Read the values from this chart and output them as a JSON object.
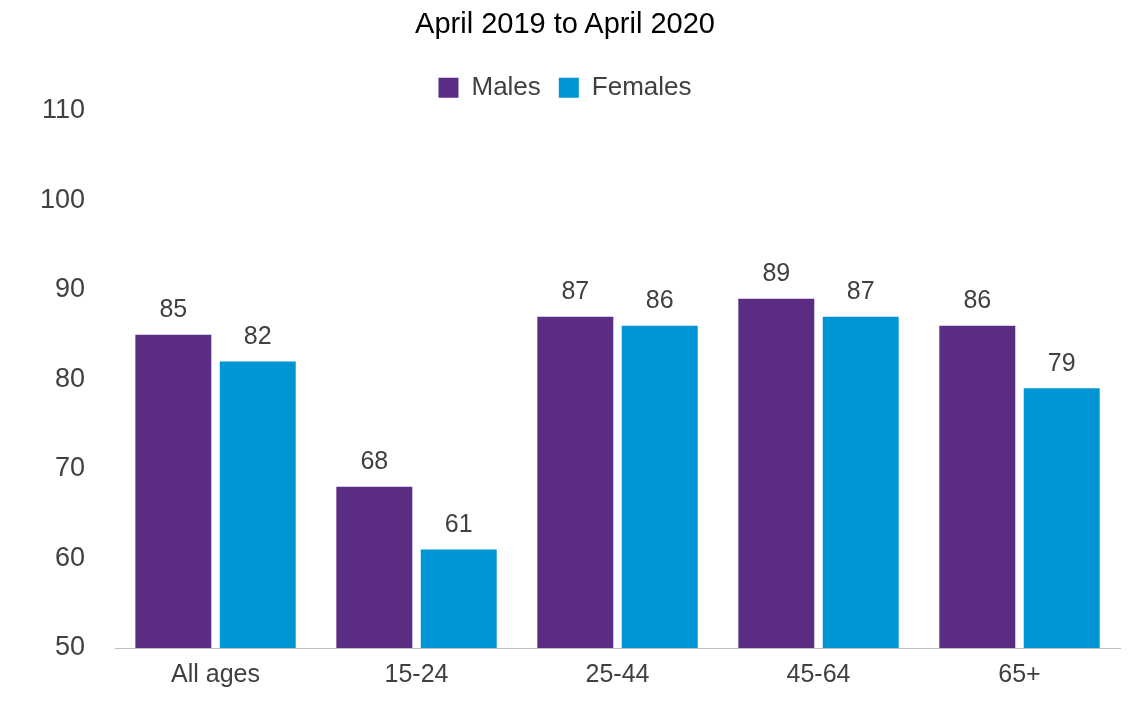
{
  "chart_data": {
    "type": "bar",
    "title": "April 2019 to April 2020",
    "categories": [
      "All ages",
      "15-24",
      "25-44",
      "45-64",
      "65+"
    ],
    "series": [
      {
        "name": "Males",
        "color": "#5b2c83",
        "values": [
          85,
          68,
          87,
          89,
          86
        ]
      },
      {
        "name": "Females",
        "color": "#0096d6",
        "values": [
          82,
          61,
          86,
          87,
          79
        ]
      }
    ],
    "ylim": [
      50,
      110
    ],
    "yticks": [
      50,
      60,
      70,
      80,
      90,
      100,
      110
    ],
    "grid": false,
    "legend": "top",
    "data_labels": true
  }
}
